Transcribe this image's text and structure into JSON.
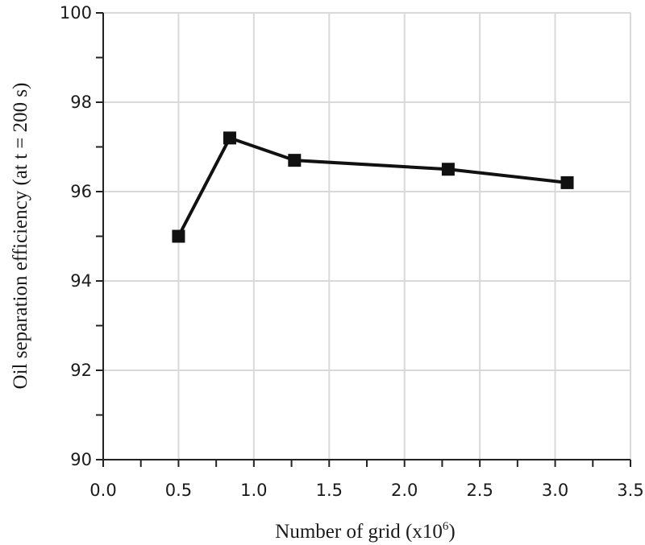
{
  "chart_data": {
    "type": "line",
    "title": "",
    "xlabel": "Number of grid (x10",
    "xlabel_superscript": "6",
    "xlabel_close": ")",
    "ylabel": "Oil separation efficiency (at t = 200 s)",
    "xlim": [
      0.0,
      3.5
    ],
    "ylim": [
      90,
      100
    ],
    "x_ticks": [
      "0.0",
      "0.5",
      "1.0",
      "1.5",
      "2.0",
      "2.5",
      "3.0",
      "3.5"
    ],
    "y_ticks": [
      "90",
      "92",
      "94",
      "96",
      "98",
      "100"
    ],
    "x_tick_values": [
      0.0,
      0.5,
      1.0,
      1.5,
      2.0,
      2.5,
      3.0,
      3.5
    ],
    "y_tick_values": [
      90,
      92,
      94,
      96,
      98,
      100
    ],
    "x_minor_step": 0.25,
    "y_minor_step": 1,
    "grid": true,
    "legend": "none",
    "series": [
      {
        "x": [
          0.5,
          0.84,
          1.27,
          2.29,
          3.08
        ],
        "y": [
          95.0,
          97.2,
          96.7,
          96.5,
          96.2
        ],
        "color": "#111111",
        "marker": "square"
      }
    ]
  }
}
